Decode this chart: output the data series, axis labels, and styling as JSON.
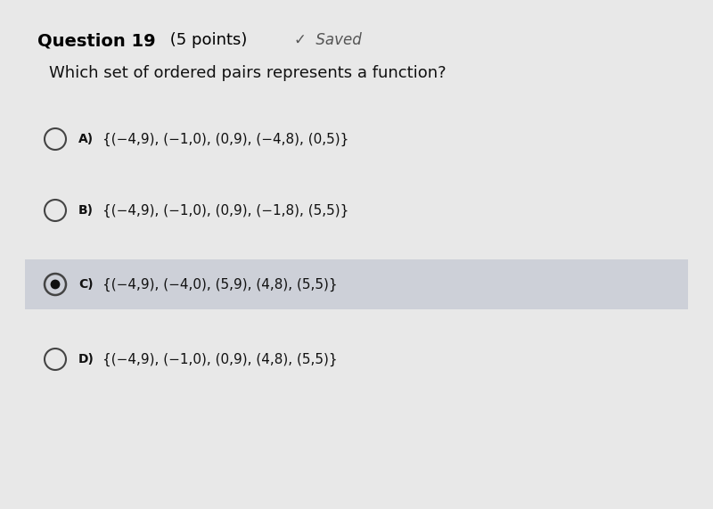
{
  "background_color": "#e8e8e8",
  "question_header": "Question 19",
  "question_points": " (5 points)",
  "saved_text": "✓  Saved",
  "question_text": "Which set of ordered pairs represents a function?",
  "options": [
    {
      "letter": "A)",
      "text": "{(−4,9), (−1,0), (0,9), (−4,8), (0,5)}",
      "selected": false
    },
    {
      "letter": "B)",
      "text": "{(−4,9), (−1,0), (0,9), (−1,8), (5,5)}",
      "selected": false
    },
    {
      "letter": "C)",
      "text": "{(−4,9), (−4,0), (5,9), (4,8), (5,5)}",
      "selected": true
    },
    {
      "letter": "D)",
      "text": "{(−4,9), (−1,0), (0,9), (4,8), (5,5)}",
      "selected": false
    }
  ],
  "header_bold_color": "#000000",
  "normal_text_color": "#111111",
  "saved_color": "#555555",
  "selected_bg_color": "#cdd0d8",
  "circle_edge_color": "#444444",
  "selected_dot_color": "#111111",
  "unselected_circle_lw": 1.5,
  "selected_circle_lw": 1.8,
  "header_fontsize": 14,
  "points_fontsize": 13,
  "saved_fontsize": 12,
  "question_fontsize": 13,
  "letter_fontsize": 10,
  "option_text_fontsize": 11
}
